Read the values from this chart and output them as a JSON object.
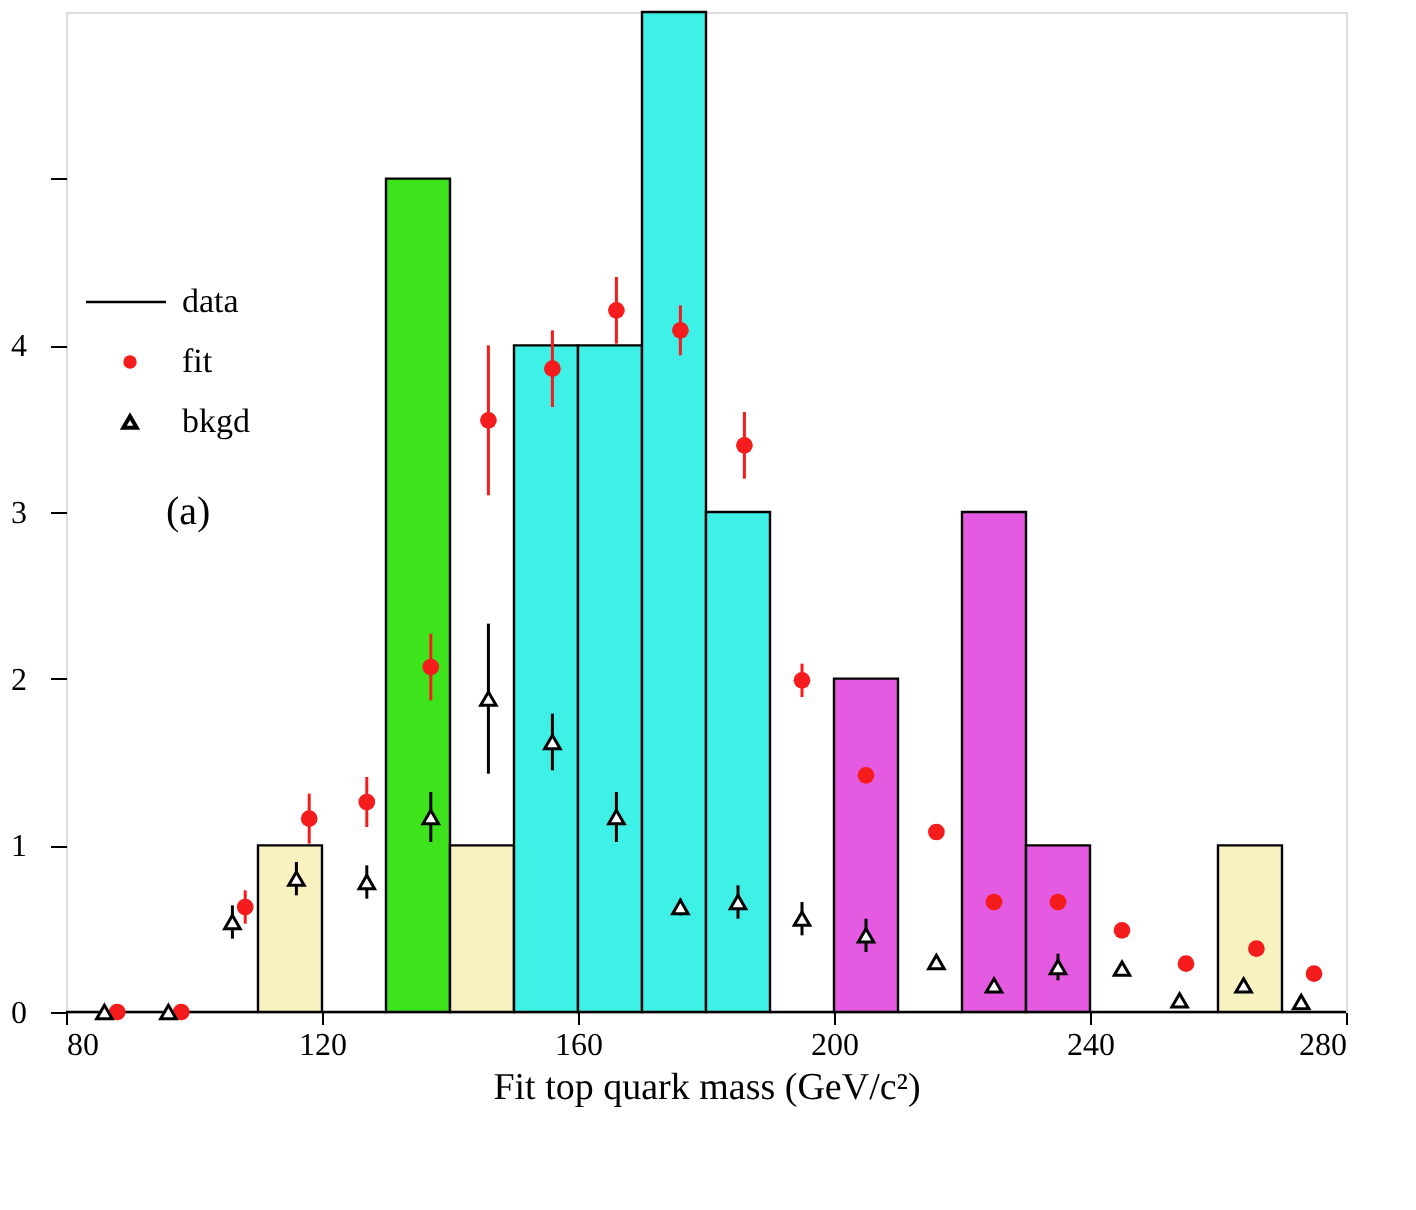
{
  "chart_data": {
    "type": "histogram",
    "xlabel": "Fit top quark mass (GeV/c²)",
    "annotations": [
      "(a)"
    ],
    "bins": [
      80,
      90,
      100,
      110,
      120,
      130,
      140,
      150,
      160,
      170,
      180,
      190,
      200,
      210,
      220,
      230,
      240,
      250,
      260,
      270,
      280
    ],
    "xlim": [
      80,
      280
    ],
    "xticks": [
      80,
      120,
      160,
      200,
      240,
      280
    ],
    "ylim": [
      0,
      6
    ],
    "yticks": [
      0,
      1,
      2,
      3,
      4,
      {
        "value": 5,
        "label": null
      }
    ],
    "grid": false,
    "legend": "top left",
    "series": [
      {
        "name": "data",
        "values": [
          0,
          0,
          0,
          1,
          0,
          5,
          1,
          4,
          4,
          6,
          3,
          0,
          2,
          0,
          3,
          1,
          0,
          0,
          1,
          0
        ],
        "colors": [
          null,
          null,
          null,
          "#f7f2bf",
          null,
          "#3ee41b",
          "#f7f2bf",
          "#3ff0e6",
          "#3ff0e6",
          "#3ff0e6",
          "#3ff0e6",
          null,
          "#e45ae0",
          null,
          "#e45ae0",
          "#e45ae0",
          null,
          null,
          "#f7f2bf",
          null
        ]
      },
      {
        "name": "fit",
        "type": "scatter",
        "marker": "circle",
        "color": "#f41c1c",
        "x": [
          88,
          98,
          108,
          118,
          127,
          137,
          146,
          156,
          166,
          176,
          186,
          195,
          205,
          216,
          225,
          235,
          245,
          255,
          266,
          275
        ],
        "values": [
          0,
          0,
          0.63,
          1.16,
          1.26,
          2.07,
          3.55,
          3.86,
          4.21,
          4.09,
          3.4,
          1.99,
          1.42,
          1.08,
          0.66,
          0.66,
          0.49,
          0.29,
          0.38,
          0.23
        ],
        "errors": [
          null,
          null,
          0.1,
          0.15,
          0.15,
          0.2,
          0.45,
          0.23,
          0.2,
          0.15,
          0.2,
          0.1,
          null,
          null,
          null,
          null,
          null,
          null,
          null,
          null
        ]
      },
      {
        "name": "bkgd",
        "type": "scatter",
        "marker": "triangle",
        "color": "#000000",
        "x": [
          86,
          96,
          106,
          116,
          127,
          137,
          146,
          156,
          166,
          176,
          185,
          195,
          205,
          216,
          225,
          235,
          245,
          254,
          264,
          273
        ],
        "values": [
          0,
          0,
          0.54,
          0.8,
          0.78,
          1.17,
          1.88,
          1.62,
          1.17,
          0.63,
          0.66,
          0.56,
          0.46,
          0.3,
          0.16,
          0.27,
          0.26,
          0.07,
          0.16,
          0.06
        ],
        "errors": [
          null,
          null,
          0.1,
          0.1,
          0.1,
          0.15,
          0.45,
          0.17,
          0.15,
          0.05,
          0.1,
          0.1,
          0.1,
          null,
          null,
          0.08,
          null,
          null,
          null,
          null
        ]
      }
    ]
  }
}
